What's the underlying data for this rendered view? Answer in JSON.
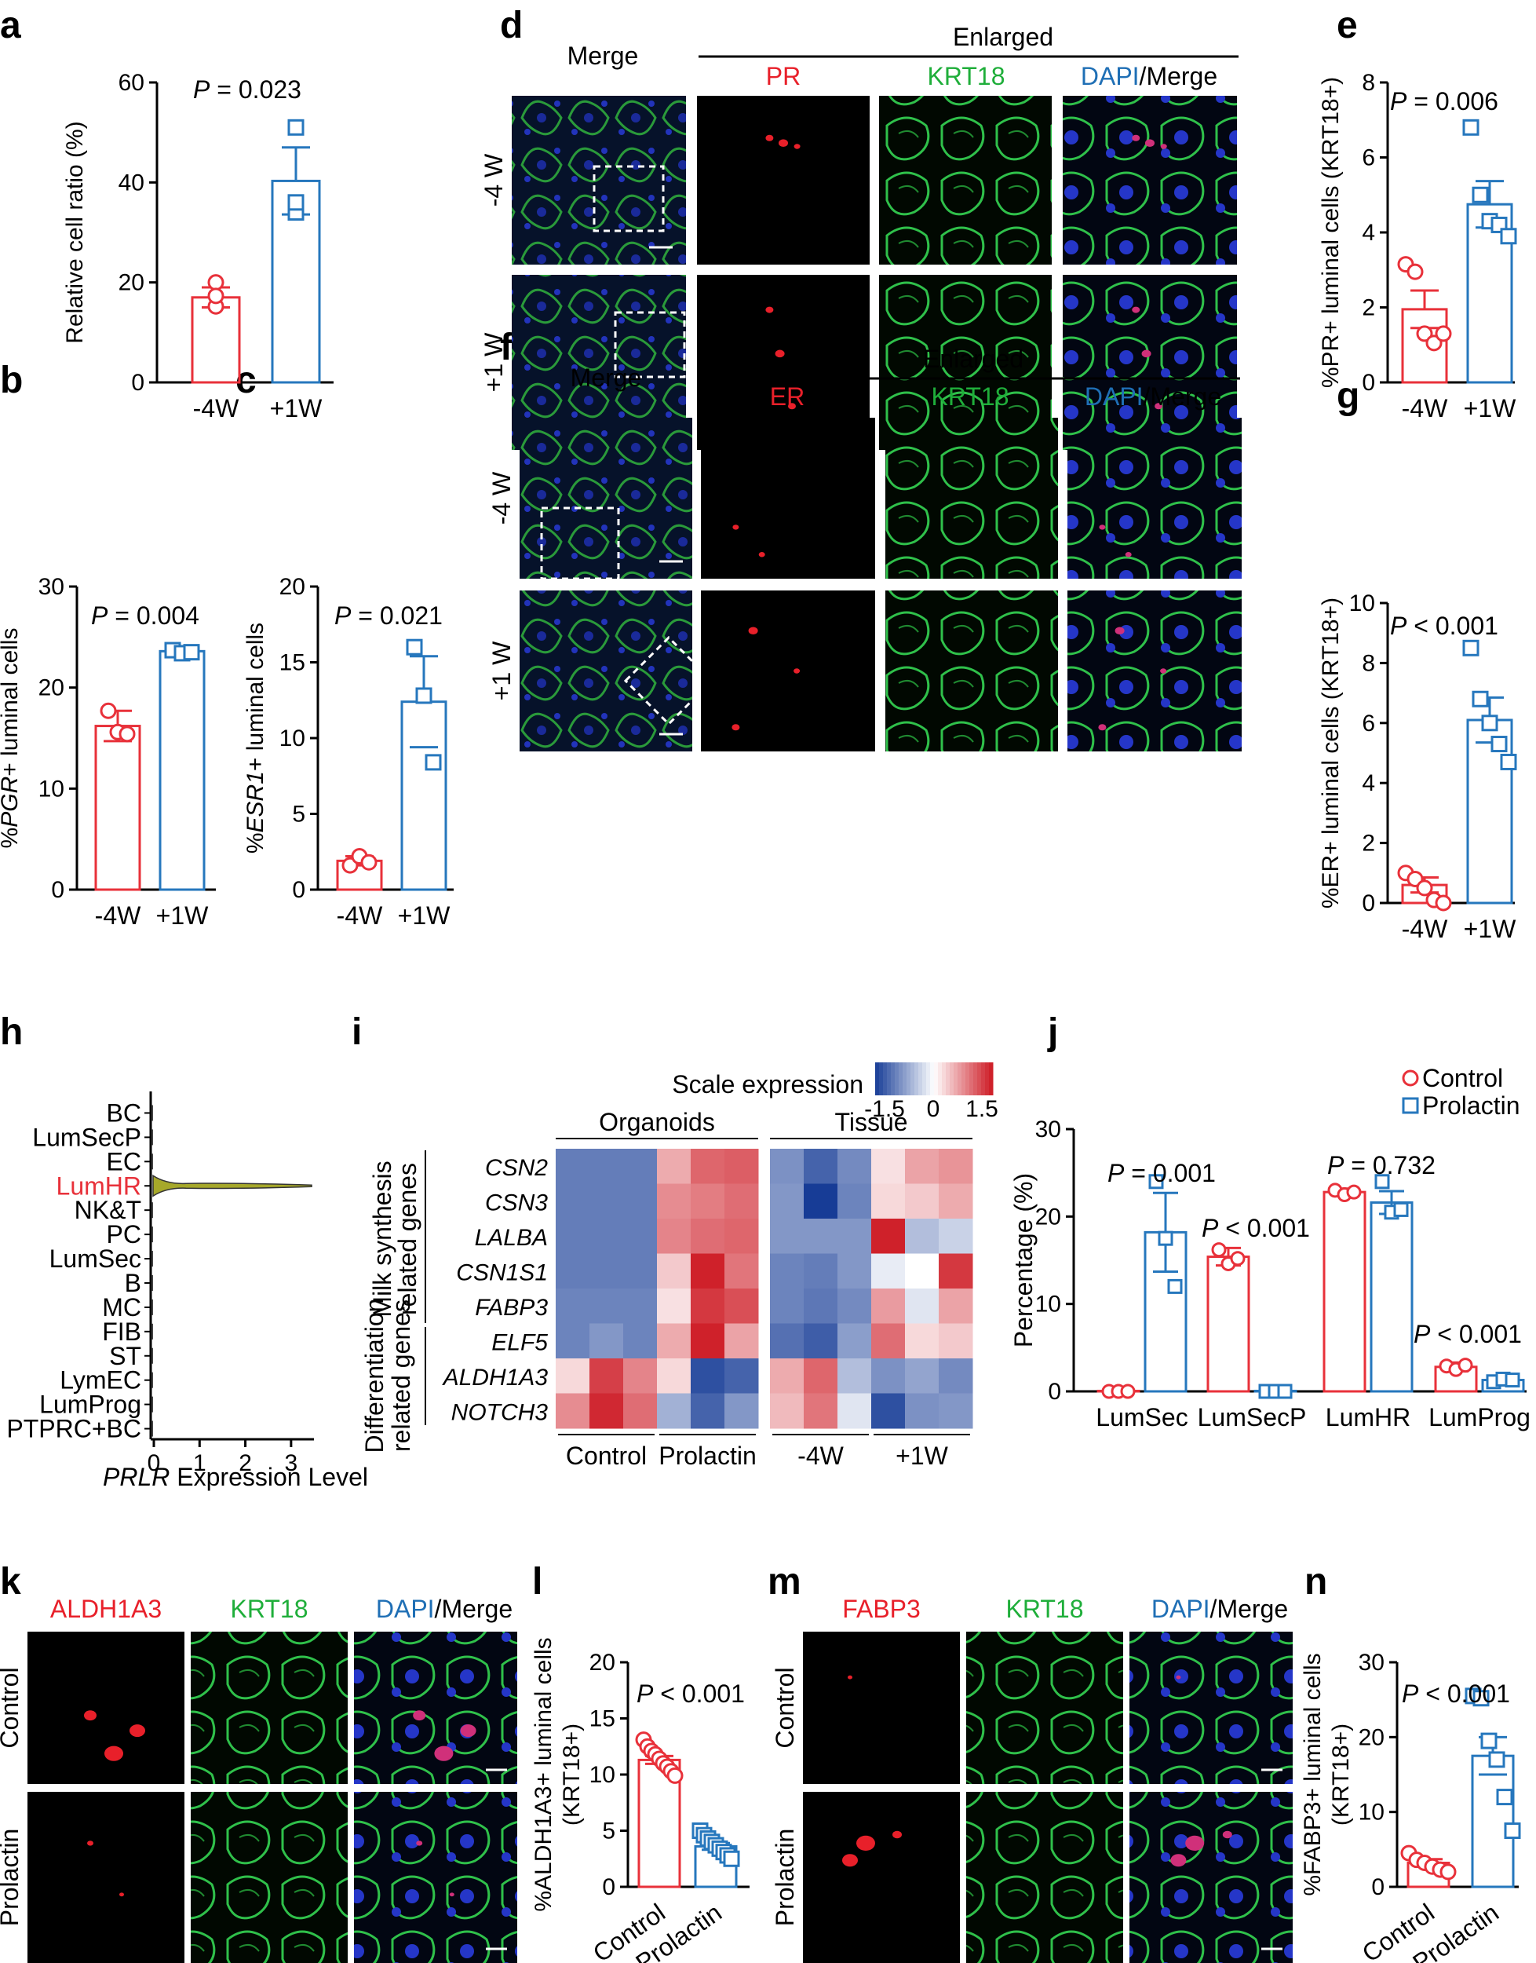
{
  "colors": {
    "control": "#e8313a",
    "treatment": "#2677bd",
    "pr_red": "#e8202a",
    "krt_green": "#1fae3a",
    "dapi_blue": "#1f6fb5",
    "violin": "#a6a82a"
  },
  "panel_letters": [
    "a",
    "b",
    "c",
    "d",
    "e",
    "f",
    "g",
    "h",
    "i",
    "j",
    "k",
    "l",
    "m",
    "n"
  ],
  "chart_data": [
    {
      "id": "a",
      "type": "bar",
      "categories": [
        "-4W",
        "+1W"
      ],
      "values": [
        17,
        40.3
      ],
      "errors": [
        2.0,
        6.7
      ],
      "points": [
        [
          20,
          15.2,
          17.3
        ],
        [
          51,
          34,
          36
        ]
      ],
      "ylabel": "Relative  cell ratio (%)",
      "ylim": [
        0,
        60
      ],
      "yticks": [
        "0",
        "20",
        "40",
        "60"
      ],
      "stat_prefix": "P",
      "stat_text": " = 0.023"
    },
    {
      "id": "b",
      "type": "bar",
      "categories": [
        "-4W",
        "+1W"
      ],
      "values": [
        16.2,
        23.6
      ],
      "errors": [
        1.5,
        0.4
      ],
      "points": [
        [
          17.7,
          15.6,
          15.4
        ],
        [
          23.7,
          23.4,
          23.5
        ]
      ],
      "ylabel_italic": "PGR",
      "ylabel_pre": "%",
      "ylabel_post": "+ luminal cells",
      "ylim": [
        0,
        30
      ],
      "yticks": [
        "0",
        "10",
        "20",
        "30"
      ],
      "stat_prefix": "P",
      "stat_text": " = 0.004"
    },
    {
      "id": "c",
      "type": "bar",
      "categories": [
        "-4W",
        "+1W"
      ],
      "values": [
        1.9,
        12.4
      ],
      "errors": [
        0.3,
        3.0
      ],
      "points": [
        [
          1.6,
          2.2,
          1.8
        ],
        [
          16.0,
          12.8,
          8.4
        ]
      ],
      "ylabel_italic": "ESR1",
      "ylabel_pre": "%",
      "ylabel_post": "+ luminal cells",
      "ylim": [
        0,
        20
      ],
      "yticks": [
        "0",
        "5",
        "10",
        "15",
        "20"
      ],
      "stat_prefix": "P",
      "stat_text": " = 0.021"
    },
    {
      "id": "e",
      "type": "bar",
      "categories": [
        "-4W",
        "+1W"
      ],
      "values": [
        1.95,
        4.75
      ],
      "errors": [
        0.5,
        0.62
      ],
      "points": [
        [
          3.15,
          2.95,
          1.3,
          1.05,
          1.3
        ],
        [
          6.8,
          5.0,
          4.3,
          4.2,
          3.9
        ]
      ],
      "ylabel": "%PR+ luminal cells (KRT18+)",
      "ylim": [
        0,
        8
      ],
      "yticks": [
        "0",
        "2",
        "4",
        "6",
        "8"
      ],
      "stat_prefix": "P",
      "stat_text": " = 0.006"
    },
    {
      "id": "g",
      "type": "bar",
      "categories": [
        "-4W",
        "+1W"
      ],
      "values": [
        0.6,
        6.1
      ],
      "errors": [
        0.25,
        0.75
      ],
      "points": [
        [
          1.0,
          0.8,
          0.5,
          0.1,
          0.0
        ],
        [
          8.5,
          6.8,
          6.0,
          5.3,
          4.7
        ]
      ],
      "ylabel": "%ER+ luminal cells (KRT18+)",
      "ylim": [
        0,
        10
      ],
      "yticks": [
        "0",
        "2",
        "4",
        "6",
        "8",
        "10"
      ],
      "stat_prefix": "P",
      "stat_text": " < 0.001"
    },
    {
      "id": "h",
      "type": "violin",
      "categories": [
        "BC",
        "LumSecP",
        "EC",
        "LumHR",
        "NK&T",
        "PC",
        "LumSec",
        "B",
        "MC",
        "FIB",
        "ST",
        "LymEC",
        "LumProg",
        "PTPRC+BC"
      ],
      "highlight": "LumHR",
      "xticks": [
        "0",
        "1",
        "2",
        "3"
      ],
      "xlim": [
        0,
        3.5
      ],
      "xlabel_italic": "PRLR",
      "xlabel_post": " Expression Level"
    },
    {
      "id": "i",
      "type": "heatmap",
      "title": "Scale expression",
      "scale_ticks": [
        "-1.5",
        "0",
        "1.5"
      ],
      "col_groups": [
        "Organoids",
        "Tissue"
      ],
      "col_subgroups": [
        "Control",
        "Prolactin",
        "-4W",
        "+1W"
      ],
      "row_groups": [
        "Milk synthesis related genes",
        "Differentiation related genes"
      ],
      "rows": [
        "CSN2",
        "CSN3",
        "LALBA",
        "CSN1S1",
        "FABP3",
        "ELF5",
        "ALDH1A3",
        "NOTCH3"
      ],
      "values": [
        [
          -1.0,
          -1.0,
          -1.0,
          0.55,
          1.0,
          1.05,
          -0.85,
          -1.2,
          -0.9,
          0.2,
          0.6,
          0.7
        ],
        [
          -1.0,
          -1.0,
          -1.0,
          0.75,
          0.85,
          0.95,
          -0.8,
          -1.6,
          -0.95,
          0.25,
          0.35,
          0.55
        ],
        [
          -1.0,
          -1.0,
          -1.0,
          0.8,
          0.95,
          1.0,
          -0.8,
          -0.8,
          -0.8,
          1.45,
          -0.5,
          -0.35
        ],
        [
          -1.0,
          -1.0,
          -1.0,
          0.35,
          1.45,
          0.9,
          -0.95,
          -1.0,
          -0.8,
          -0.15,
          0.0,
          1.3
        ],
        [
          -0.95,
          -0.95,
          -0.95,
          0.2,
          1.3,
          1.15,
          -0.95,
          -1.05,
          -0.9,
          0.65,
          -0.2,
          0.6
        ],
        [
          -0.95,
          -0.8,
          -0.95,
          0.55,
          1.45,
          0.6,
          -1.1,
          -1.25,
          -0.75,
          0.95,
          0.25,
          0.35
        ],
        [
          0.25,
          1.25,
          0.8,
          0.25,
          -1.35,
          -1.2,
          0.55,
          1.0,
          -0.5,
          -0.85,
          -0.7,
          -0.9
        ],
        [
          0.75,
          1.4,
          0.95,
          -0.6,
          -1.2,
          -0.8,
          0.45,
          0.9,
          -0.2,
          -1.35,
          -0.85,
          -0.8
        ]
      ]
    },
    {
      "id": "j",
      "type": "bar",
      "categories": [
        "LumSec",
        "LumSecP",
        "LumHR",
        "LumProg"
      ],
      "series": [
        {
          "name": "Control",
          "values": [
            0.05,
            15.4,
            22.8,
            2.8
          ],
          "errors": [
            0,
            1.0,
            0.4,
            0.5
          ],
          "points": [
            [
              0,
              0,
              0
            ],
            [
              16.2,
              14.6,
              15.2
            ],
            [
              23.0,
              22.5,
              22.8
            ]
          ]
        },
        {
          "name": "Prolactin",
          "values": [
            18.2,
            0.05,
            21.6,
            1.3
          ],
          "errors": [
            4.5,
            0,
            1.3,
            0.3
          ],
          "points": [
            [
              24.0,
              17.5,
              12.0
            ],
            [
              0,
              0,
              0
            ],
            [
              24.0,
              20.5,
              20.8
            ]
          ]
        }
      ],
      "extra_points": [
        [
          2.9,
          2.5,
          3.0
        ],
        [
          1.1,
          1.4,
          1.3
        ]
      ],
      "stats": [
        " = 0.001",
        " < 0.001",
        " = 0.732",
        " < 0.001"
      ],
      "stat_prefix": "P",
      "ylabel": "Percentage (%)",
      "ylim": [
        0,
        30
      ],
      "yticks": [
        "0",
        "10",
        "20",
        "30"
      ]
    },
    {
      "id": "l",
      "type": "bar",
      "categories": [
        "Control",
        "Prolactin"
      ],
      "values": [
        11.3,
        3.6
      ],
      "errors": [
        0.35,
        0.3
      ],
      "points": [
        [
          13.1,
          12.5,
          12.1,
          11.8,
          11.4,
          11.0,
          10.7,
          10.3,
          9.9
        ],
        [
          5.0,
          4.6,
          4.3,
          4.0,
          3.7,
          3.4,
          3.1,
          2.8,
          2.5
        ]
      ],
      "ylabel_line1": "%ALDH1A3+ luminal cells",
      "ylabel_line2": "(KRT18+)",
      "ylim": [
        0,
        20
      ],
      "yticks": [
        "0",
        "5",
        "10",
        "15",
        "20"
      ],
      "stat_prefix": "P",
      "stat_text": " < 0.001"
    },
    {
      "id": "n",
      "type": "bar",
      "categories": [
        "Control",
        "Prolactin"
      ],
      "values": [
        3.2,
        17.5
      ],
      "errors": [
        0.5,
        2.5
      ],
      "points": [
        [
          4.5,
          3.6,
          3.2,
          2.7,
          2.3,
          2.0
        ],
        [
          25.5,
          25.2,
          19.5,
          17.0,
          12.0,
          7.5
        ]
      ],
      "ylabel_line1": "%FABP3+ luminal cells",
      "ylabel_line2": "(KRT18+)",
      "ylim": [
        0,
        30
      ],
      "yticks": [
        "0",
        "10",
        "20",
        "30"
      ],
      "stat_prefix": "P",
      "stat_text": " < 0.001"
    }
  ],
  "micro": {
    "d": {
      "merge": "Merge",
      "enlarged": "Enlarged",
      "ch1": "PR",
      "ch2": "KRT18",
      "ch3a": "DAPI",
      "ch3b": "/Merge",
      "rows": [
        "-4 W",
        "+1 W"
      ]
    },
    "f": {
      "merge": "Merge",
      "enlarged": "Enlarged",
      "ch1": "ER",
      "ch2": "KRT18",
      "ch3a": "DAPI",
      "ch3b": "/Merge",
      "rows": [
        "-4 W",
        "+1 W"
      ]
    },
    "k": {
      "ch1": "ALDH1A3",
      "ch2": "KRT18",
      "ch3a": "DAPI",
      "ch3b": "/Merge",
      "rows": [
        "Control",
        "Prolactin"
      ]
    },
    "m": {
      "ch1": "FABP3",
      "ch2": "KRT18",
      "ch3a": "DAPI",
      "ch3b": "/Merge",
      "rows": [
        "Control",
        "Prolactin"
      ]
    }
  }
}
